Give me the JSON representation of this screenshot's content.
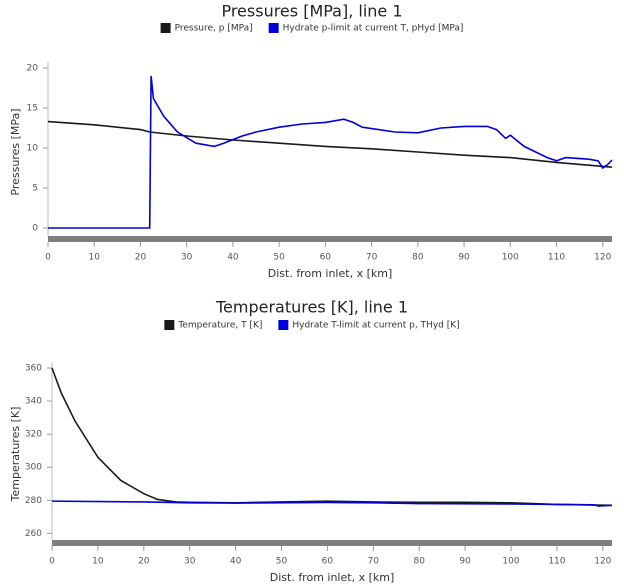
{
  "chart_data": [
    {
      "type": "line",
      "title": "Pressures [MPa], line 1",
      "x_label": "Dist. from inlet, x [km]",
      "y_label": "Pressures [MPa]",
      "xlim": [
        0,
        122
      ],
      "xticks": [
        0,
        10,
        20,
        30,
        40,
        50,
        60,
        70,
        80,
        90,
        100,
        110,
        120
      ],
      "ylim": [
        -1,
        20
      ],
      "yticks": [
        0,
        5,
        10,
        15,
        20
      ],
      "series": [
        {
          "name": "Pressure, p [MPa]",
          "color": "#1a1a1a",
          "x": [
            0,
            10,
            20,
            22,
            30,
            40,
            50,
            60,
            70,
            80,
            90,
            100,
            110,
            122
          ],
          "values": [
            13.3,
            12.9,
            12.3,
            12.0,
            11.5,
            11.0,
            10.6,
            10.2,
            9.9,
            9.5,
            9.1,
            8.8,
            8.2,
            7.6
          ]
        },
        {
          "name": "Hydrate p-limit at current T, pHyd [MPa]",
          "color": "#0000dd",
          "x": [
            0,
            22,
            22.3,
            22.8,
            25,
            28,
            32,
            36,
            38,
            42,
            45,
            50,
            55,
            60,
            64,
            66,
            68,
            75,
            80,
            85,
            90,
            95,
            97,
            99,
            100,
            103,
            108,
            110,
            112,
            117,
            119,
            120,
            121,
            122
          ],
          "values": [
            0,
            0,
            19,
            16.2,
            14,
            12,
            10.6,
            10.2,
            10.6,
            11.5,
            12,
            12.6,
            13,
            13.2,
            13.6,
            13.2,
            12.6,
            12.0,
            11.9,
            12.5,
            12.7,
            12.7,
            12.3,
            11.2,
            11.6,
            10.2,
            8.8,
            8.4,
            8.8,
            8.6,
            8.4,
            7.5,
            7.9,
            8.5
          ]
        }
      ]
    },
    {
      "type": "line",
      "title": "Temperatures [K], line 1",
      "x_label": "Dist. from inlet, x [km]",
      "y_label": "Temperatures [K]",
      "xlim": [
        0,
        122
      ],
      "xticks": [
        0,
        10,
        20,
        30,
        40,
        50,
        60,
        70,
        80,
        90,
        100,
        110,
        120
      ],
      "ylim": [
        256,
        360
      ],
      "yticks": [
        260,
        280,
        300,
        320,
        340,
        360
      ],
      "series": [
        {
          "name": "Temperature, T [K]",
          "color": "#1a1a1a",
          "x": [
            0,
            2,
            5,
            10,
            15,
            20,
            23,
            27,
            30,
            40,
            50,
            60,
            70,
            80,
            90,
            100,
            110,
            122
          ],
          "values": [
            360,
            345,
            328,
            306,
            292,
            284,
            280.5,
            279,
            278.8,
            278.5,
            279,
            279.5,
            279,
            278.8,
            278.8,
            278.5,
            277.5,
            277
          ]
        },
        {
          "name": "Hydrate T-limit at current p, THyd [K]",
          "color": "#0000dd",
          "x": [
            0,
            20,
            30,
            40,
            60,
            70,
            80,
            100,
            110,
            118,
            119,
            122
          ],
          "values": [
            279.5,
            279,
            278.5,
            278.3,
            278.7,
            278.5,
            278,
            277.8,
            277.5,
            277.3,
            276.5,
            277
          ]
        }
      ]
    }
  ]
}
